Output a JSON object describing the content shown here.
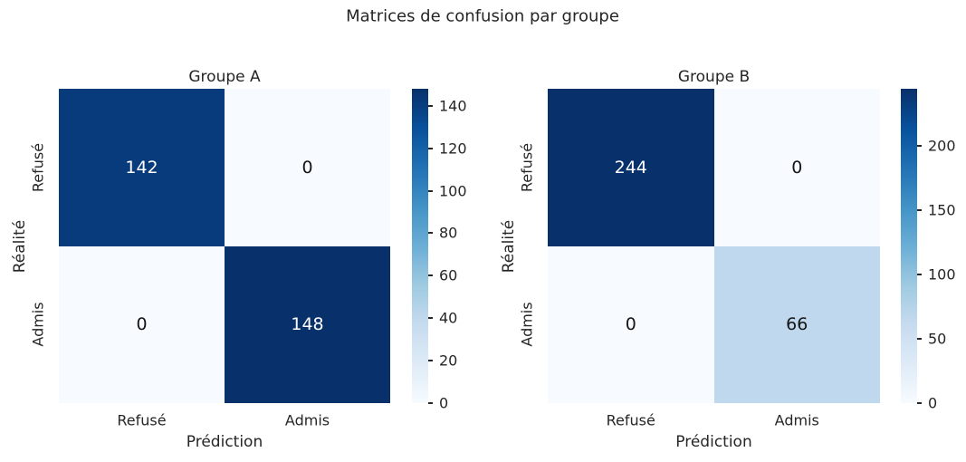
{
  "figure_title": "Matrices de confusion par groupe",
  "colors": {
    "background": "#ffffff",
    "text": "#262626",
    "tick_mark": "#262626",
    "annot_light": "#ffffff",
    "annot_dark": "#151515",
    "colormap": "Blues",
    "colormap_stops": [
      "#f7fbff",
      "#deebf7",
      "#c6dbef",
      "#9ecae1",
      "#6baed6",
      "#4292c6",
      "#2171b5",
      "#08519c",
      "#08306b"
    ]
  },
  "chart_data": [
    {
      "type": "heatmap",
      "title": "Groupe A",
      "xlabel": "Prédiction",
      "ylabel": "Réalité",
      "x_ticklabels": [
        "Refusé",
        "Admis"
      ],
      "y_ticklabels": [
        "Refusé",
        "Admis"
      ],
      "rows": [
        [
          142,
          0
        ],
        [
          0,
          148
        ]
      ],
      "vmin": 0,
      "vmax": 148,
      "colorbar_ticks": [
        0,
        20,
        40,
        60,
        80,
        100,
        120,
        140
      ],
      "annotations": true,
      "grid": false,
      "legend": "colorbar-right"
    },
    {
      "type": "heatmap",
      "title": "Groupe B",
      "xlabel": "Prédiction",
      "ylabel": "Réalité",
      "x_ticklabels": [
        "Refusé",
        "Admis"
      ],
      "y_ticklabels": [
        "Refusé",
        "Admis"
      ],
      "rows": [
        [
          244,
          0
        ],
        [
          0,
          66
        ]
      ],
      "vmin": 0,
      "vmax": 244,
      "colorbar_ticks": [
        0,
        50,
        100,
        150,
        200
      ],
      "annotations": true,
      "grid": false,
      "legend": "colorbar-right"
    }
  ]
}
